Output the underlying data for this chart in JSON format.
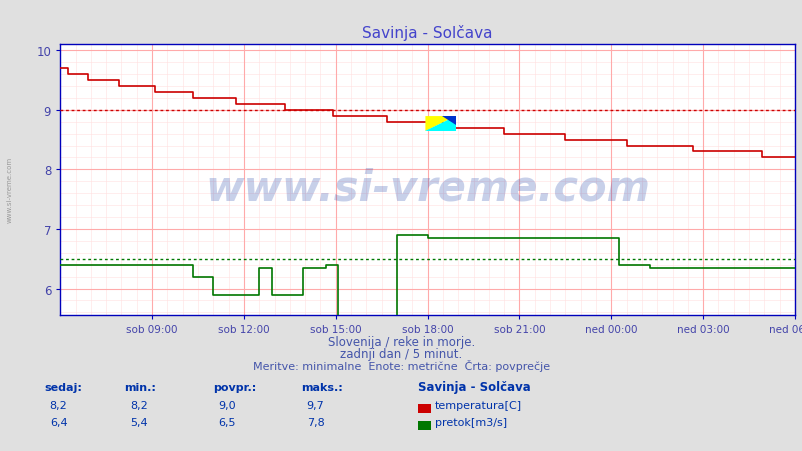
{
  "title": "Savinja - Solčava",
  "title_color": "#4444cc",
  "bg_color": "#e0e0e0",
  "plot_bg_color": "#ffffff",
  "xlabel_color": "#4444aa",
  "ylabel_color": "#4444aa",
  "x_tick_labels": [
    "sob 09:00",
    "sob 12:00",
    "sob 15:00",
    "sob 18:00",
    "sob 21:00",
    "ned 00:00",
    "ned 03:00",
    "ned 06:00"
  ],
  "x_tick_positions": [
    0.125,
    0.25,
    0.375,
    0.5,
    0.625,
    0.75,
    0.875,
    1.0
  ],
  "ylim_min": 5.55,
  "ylim_max": 10.1,
  "yticks": [
    6,
    7,
    8,
    9,
    10
  ],
  "watermark_text": "www.si-vreme.com",
  "watermark_color": "#2244aa",
  "watermark_alpha": 0.25,
  "footer_line1": "Slovenija / reke in morje.",
  "footer_line2": "zadnji dan / 5 minut.",
  "footer_line3": "Meritve: minimalne  Enote: metrične  Črta: povprečje",
  "footer_color": "#4455aa",
  "legend_title": "Savinja - Solčava",
  "stats_headers": [
    "sedaj:",
    "min.:",
    "povpr.:",
    "maks.:"
  ],
  "stats_temp": [
    "8,2",
    "8,2",
    "9,0",
    "9,7"
  ],
  "stats_flow": [
    "6,4",
    "5,4",
    "6,5",
    "7,8"
  ],
  "temp_avg": 9.0,
  "flow_avg": 6.5,
  "temp_color": "#cc0000",
  "flow_color": "#007700",
  "side_label": "www.si-vreme.com",
  "n_points": 289,
  "spine_color": "#0000bb",
  "grid_major_color": "#ffaaaa",
  "grid_minor_color": "#ffe0e0"
}
